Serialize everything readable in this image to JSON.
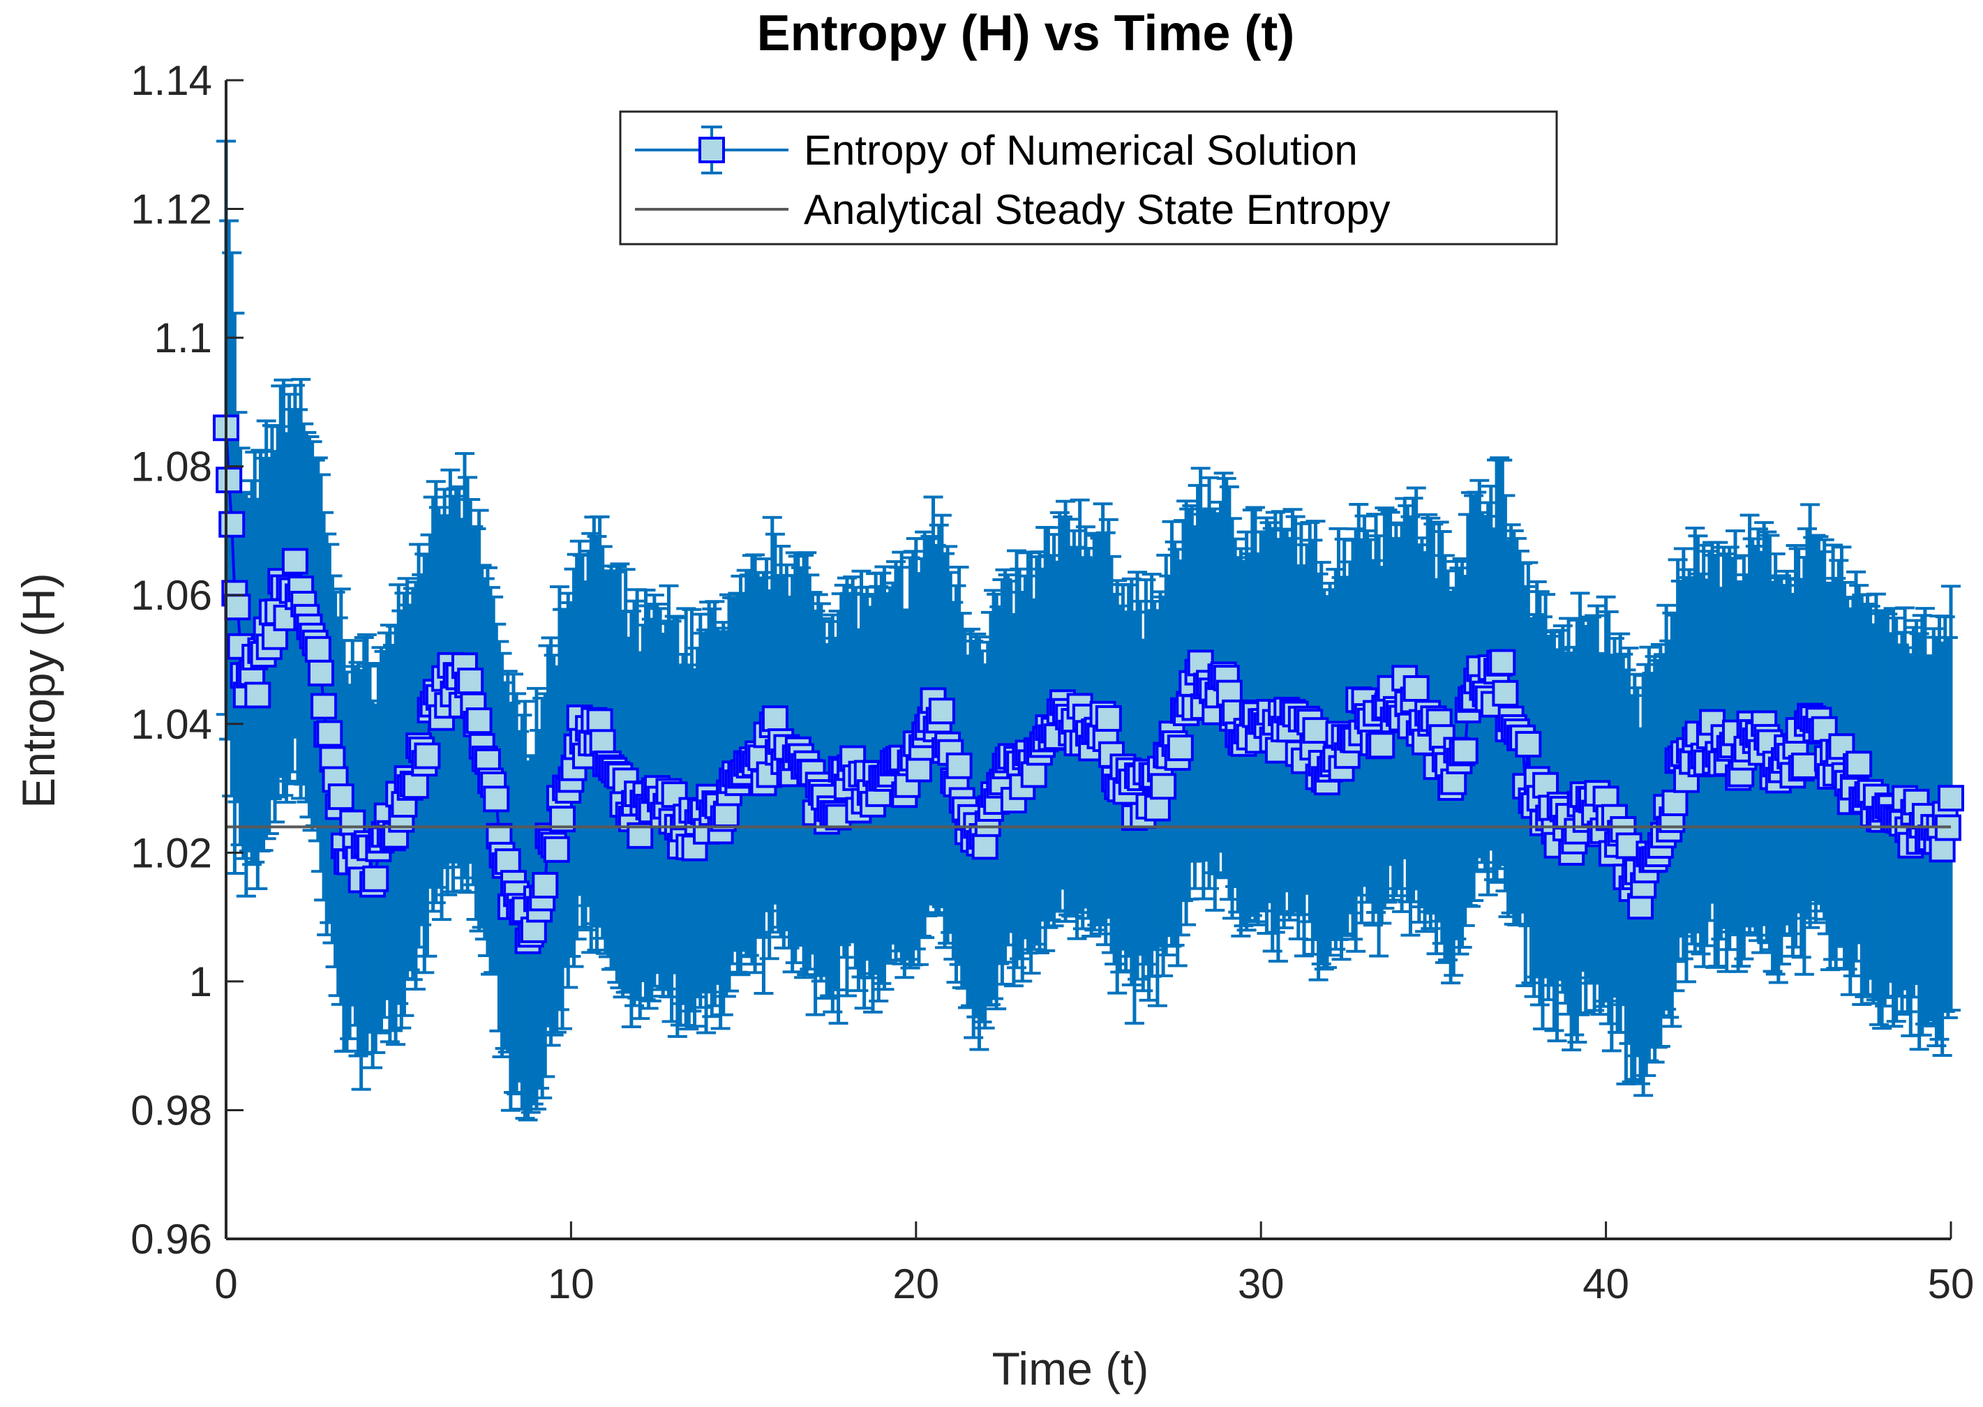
{
  "chart_data": {
    "type": "line",
    "title": "Entropy (H) vs Time (t)",
    "xlabel": "Time (t)",
    "ylabel": "Entropy (H)",
    "xlim": [
      0,
      50
    ],
    "ylim": [
      0.96,
      1.14
    ],
    "xticks": [
      0,
      10,
      20,
      30,
      40,
      50
    ],
    "xtick_labels": [
      "0",
      "10",
      "20",
      "30",
      "40",
      "50"
    ],
    "yticks": [
      0.96,
      0.98,
      1.0,
      1.02,
      1.04,
      1.06,
      1.08,
      1.1,
      1.12,
      1.14
    ],
    "ytick_labels": [
      "0.96",
      "0.98",
      "1",
      "1.02",
      "1.04",
      "1.06",
      "1.08",
      "1.1",
      "1.12",
      "1.14"
    ],
    "grid": false,
    "legend_position": "top-center",
    "series": [
      {
        "name": "Entropy of Numerical Solution",
        "color": "#0072BD",
        "marker_face": "#ADD8E6",
        "marker_edge": "#0000FF",
        "error_halfwidth": 0.03,
        "x": [
          0,
          0.2,
          0.5,
          1,
          1.5,
          2,
          2.5,
          3,
          3.5,
          4,
          4.5,
          5,
          5.5,
          6,
          6.5,
          7,
          7.5,
          8,
          8.5,
          9,
          9.5,
          10,
          10.5,
          11,
          11.5,
          12,
          12.5,
          13,
          13.5,
          14,
          14.5,
          15,
          15.5,
          16,
          16.5,
          17,
          17.5,
          18,
          18.5,
          19,
          19.5,
          20,
          20.5,
          21,
          21.5,
          22,
          22.5,
          23,
          23.5,
          24,
          24.5,
          25,
          25.5,
          26,
          26.5,
          27,
          27.5,
          28,
          28.5,
          29,
          29.5,
          30,
          30.5,
          31,
          31.5,
          32,
          32.5,
          33,
          33.5,
          34,
          34.5,
          35,
          35.5,
          36,
          36.5,
          37,
          37.5,
          38,
          38.5,
          39,
          39.5,
          40,
          40.5,
          41,
          41.5,
          42,
          42.5,
          43,
          43.5,
          44,
          44.5,
          45,
          45.5,
          46,
          46.5,
          47,
          47.5,
          48,
          48.5,
          49,
          49.5,
          50
        ],
        "y": [
          1.09,
          1.065,
          1.045,
          1.048,
          1.058,
          1.062,
          1.055,
          1.035,
          1.022,
          1.018,
          1.02,
          1.028,
          1.034,
          1.04,
          1.046,
          1.045,
          1.035,
          1.022,
          1.008,
          1.012,
          1.022,
          1.034,
          1.04,
          1.035,
          1.028,
          1.025,
          1.027,
          1.026,
          1.023,
          1.025,
          1.028,
          1.03,
          1.033,
          1.038,
          1.035,
          1.03,
          1.028,
          1.031,
          1.03,
          1.029,
          1.032,
          1.034,
          1.042,
          1.035,
          1.026,
          1.024,
          1.03,
          1.032,
          1.034,
          1.038,
          1.041,
          1.04,
          1.038,
          1.032,
          1.028,
          1.03,
          1.036,
          1.045,
          1.046,
          1.044,
          1.04,
          1.04,
          1.038,
          1.04,
          1.036,
          1.034,
          1.038,
          1.042,
          1.04,
          1.044,
          1.042,
          1.038,
          1.034,
          1.04,
          1.048,
          1.046,
          1.036,
          1.03,
          1.025,
          1.022,
          1.028,
          1.025,
          1.02,
          1.015,
          1.018,
          1.03,
          1.038,
          1.037,
          1.035,
          1.036,
          1.037,
          1.034,
          1.036,
          1.038,
          1.034,
          1.032,
          1.03,
          1.028,
          1.025,
          1.024,
          1.022,
          1.026
        ]
      },
      {
        "name": "Analytical Steady State Entropy",
        "color": "#595959",
        "x": [
          0,
          50
        ],
        "y": [
          1.024,
          1.024
        ]
      }
    ]
  }
}
